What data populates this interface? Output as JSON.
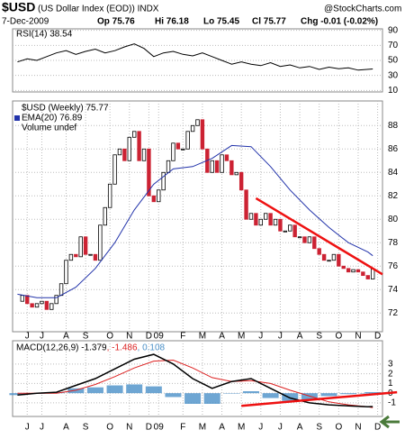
{
  "header": {
    "symbol": "$USD",
    "name": "(US Dollar Index (EOD)) INDX",
    "date": "7-Dec-2009",
    "open": "Op 75.76",
    "high": "Hi 76.18",
    "low": "Lo 75.45",
    "close": "Cl 75.77",
    "change": "Chg -0.01 (-0.02%)",
    "brand": "@StockCharts.com"
  },
  "chart_data": {
    "type": "candlestick",
    "xlim": [
      -1,
      75
    ],
    "xticks": [
      {
        "value": 2,
        "label": "J"
      },
      {
        "value": 5,
        "label": "J"
      },
      {
        "value": 10,
        "label": "A"
      },
      {
        "value": 14,
        "label": "S"
      },
      {
        "value": 19,
        "label": "O"
      },
      {
        "value": 23,
        "label": "N"
      },
      {
        "value": 27,
        "label": "D"
      },
      {
        "value": 29,
        "label": "09"
      },
      {
        "value": 34,
        "label": "F"
      },
      {
        "value": 38,
        "label": "M"
      },
      {
        "value": 42,
        "label": "A"
      },
      {
        "value": 46,
        "label": "M"
      },
      {
        "value": 50,
        "label": "J"
      },
      {
        "value": 54,
        "label": "J"
      },
      {
        "value": 58,
        "label": "A"
      },
      {
        "value": 62,
        "label": "S"
      },
      {
        "value": 66,
        "label": "O"
      },
      {
        "value": 70,
        "label": "N"
      },
      {
        "value": 74,
        "label": "D"
      }
    ],
    "rsi": {
      "label": "RSI(14) 38.54",
      "color": "#000",
      "ylim": [
        8,
        92
      ],
      "yticks": [
        10,
        30,
        50,
        70,
        90
      ],
      "x": [
        0,
        2,
        4,
        6,
        8,
        10,
        12,
        14,
        16,
        18,
        20,
        22,
        24,
        26,
        28,
        30,
        32,
        34,
        36,
        38,
        40,
        42,
        44,
        46,
        48,
        50,
        52,
        54,
        56,
        58,
        60,
        62,
        64,
        66,
        68,
        70,
        73
      ],
      "values": [
        48,
        52,
        50,
        55,
        60,
        63,
        58,
        62,
        65,
        60,
        63,
        68,
        72,
        66,
        55,
        60,
        62,
        58,
        56,
        60,
        55,
        50,
        45,
        48,
        45,
        43,
        47,
        42,
        44,
        40,
        42,
        38,
        41,
        39,
        40,
        37,
        38.54
      ]
    },
    "price": {
      "label": "$USD (Weekly) 75.77",
      "volume_label": "Volume undef",
      "ylim": [
        70.4,
        90.1
      ],
      "yticks": [
        72,
        74,
        76,
        78,
        80,
        82,
        84,
        86,
        88
      ],
      "up_color": "#000",
      "down_color": "#cc2233",
      "close": [
        73,
        73.5,
        72.8,
        72.5,
        72.8,
        73,
        72.3,
        72.8,
        73.5,
        74.5,
        76.5,
        77,
        76.8,
        78.5,
        77,
        77,
        76.5,
        79.5,
        81,
        83,
        85.5,
        86,
        85,
        87,
        87.5,
        85,
        86,
        82,
        81.5,
        82.5,
        84,
        85,
        86.5,
        86,
        86,
        87.5,
        88,
        88.5,
        86,
        84,
        85,
        84,
        85.5,
        85,
        83.8,
        84,
        82.5,
        80,
        80.5,
        79.5,
        80,
        80.5,
        79.5,
        80,
        79,
        79,
        79.5,
        78.5,
        78.5,
        78,
        78.5,
        77.5,
        77,
        76.5,
        76.5,
        77,
        76,
        75.8,
        75.5,
        75.7,
        75.5,
        75.2,
        74.9,
        75.77
      ]
    },
    "ema": {
      "name": "EMA(20) 76.89",
      "color": "#2233aa",
      "x": [
        0,
        4,
        8,
        12,
        16,
        20,
        24,
        28,
        32,
        36,
        40,
        44,
        48,
        52,
        56,
        60,
        64,
        68,
        72,
        73
      ],
      "values": [
        73.6,
        73.3,
        73.3,
        74.2,
        75.8,
        78,
        80.8,
        83,
        84.3,
        84.5,
        85.2,
        86.3,
        86.2,
        84.5,
        82.5,
        80.8,
        79.3,
        78,
        77.2,
        76.89
      ]
    },
    "trendline": {
      "color": "#ee1111",
      "x": [
        49,
        75
      ],
      "values": [
        81.8,
        75.3
      ]
    },
    "macd": {
      "label": "MACD(12,26,9) -1.379",
      "signal_label": ", -1.486",
      "hist_label": ", 0.108",
      "ylim": [
        -2.4,
        5.4
      ],
      "yticks": [
        3,
        2,
        1,
        0,
        -1
      ],
      "x": [
        0,
        4,
        8,
        12,
        16,
        20,
        24,
        28,
        32,
        36,
        40,
        44,
        48,
        52,
        56,
        60,
        64,
        68,
        72,
        73
      ],
      "macd": [
        -0.2,
        0,
        0.1,
        0.8,
        1.5,
        2.5,
        3.5,
        4,
        3,
        1.5,
        0.5,
        1.2,
        1.5,
        0.5,
        -0.5,
        -1,
        -1.2,
        -1.3,
        -1.4,
        -1.379
      ],
      "signal": [
        0,
        0,
        0,
        0.3,
        0.9,
        1.7,
        2.6,
        3.3,
        3.4,
        2.6,
        1.6,
        1.2,
        1.3,
        1,
        0.3,
        -0.3,
        -0.9,
        -1.2,
        -1.4,
        -1.486
      ],
      "hist": [
        -0.2,
        0,
        0.1,
        0.5,
        0.6,
        0.8,
        0.9,
        0.7,
        -0.4,
        -1.1,
        -1.1,
        0,
        0.2,
        -0.5,
        -0.8,
        -0.7,
        -0.3,
        -0.1,
        0,
        0.108
      ],
      "macd_color": "#000",
      "signal_color": "#dd2222",
      "hist_color": "#4a90c8",
      "trendline": {
        "color": "#ee1111",
        "x": [
          46,
          78
        ],
        "values": [
          -1.3,
          0.1
        ]
      }
    }
  }
}
